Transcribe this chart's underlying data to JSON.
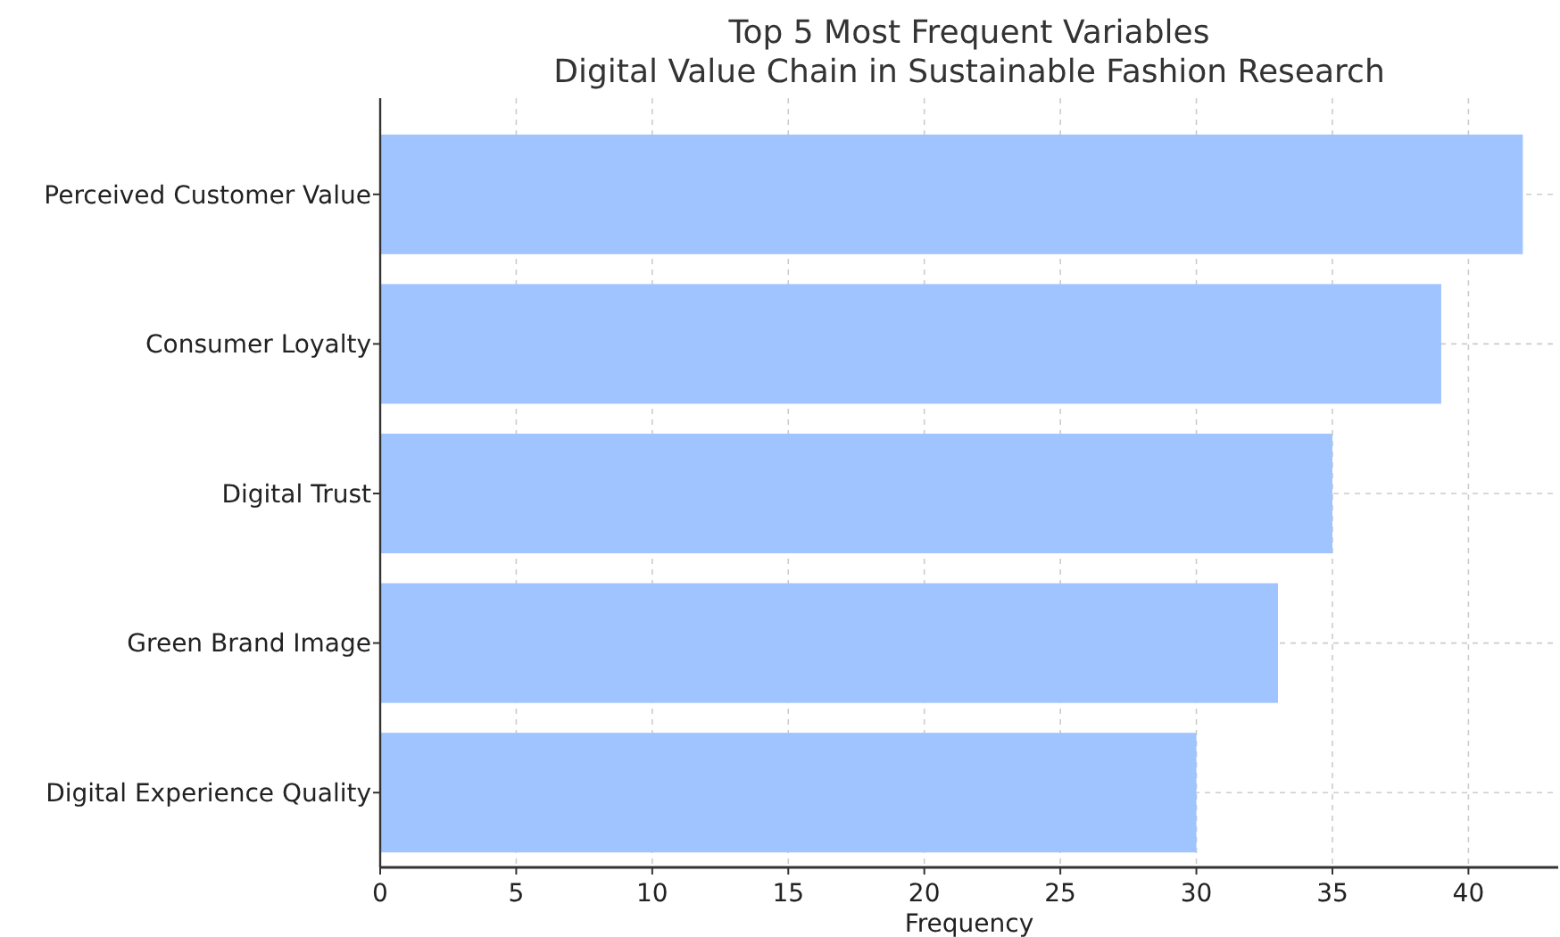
{
  "chart_data": {
    "type": "bar",
    "orientation": "horizontal",
    "title": "Top 5 Most Frequent Variables\nDigital Value Chain in Sustainable Fashion Research",
    "xlabel": "Frequency",
    "categories": [
      "Perceived Customer Value",
      "Consumer Loyalty",
      "Digital Trust",
      "Green Brand Image",
      "Digital Experience Quality"
    ],
    "values": [
      42,
      39,
      35,
      33,
      30
    ],
    "color": "#a0c4ff",
    "xlim": [
      0,
      43.3
    ],
    "xticks": [
      0,
      5,
      10,
      15,
      20,
      25,
      30,
      35,
      40
    ],
    "grid": true
  }
}
